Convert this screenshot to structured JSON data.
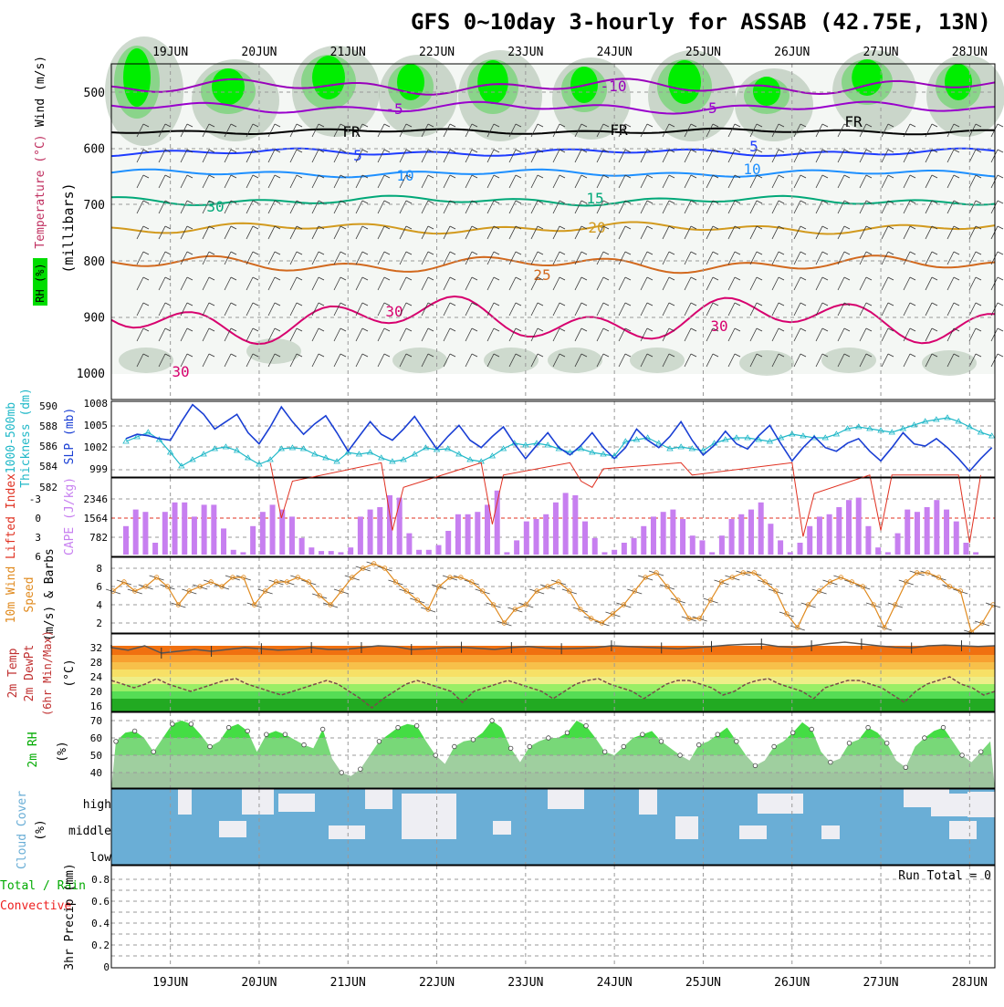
{
  "title": "GFS 0~10day 3-hourly for ASSAB (42.75E, 13N)",
  "date_ticks": [
    "19JUN",
    "20JUN",
    "21JUN",
    "22JUN",
    "23JUN",
    "24JUN",
    "25JUN",
    "26JUN",
    "27JUN",
    "28JUN"
  ],
  "colors": {
    "rh_green": "#00ee00",
    "rh_mid": "#7fd37f",
    "rh_grey": "#9fb59f",
    "temp_minus10": "#9900bb",
    "temp_minus5": "#9900cc",
    "temp_freezing": "#000000",
    "temp_5": "#1e3cff",
    "temp_10": "#1e90ff",
    "temp_15": "#00a878",
    "temp_20": "#d29a1e",
    "temp_25": "#d2691e",
    "temp_30": "#d7006e",
    "slp": "#1a3fd4",
    "thickness": "#20b8c8",
    "cape_bar": "#c77ff0",
    "lifted_index": "#e03020",
    "wind10m": "#e08a1e",
    "cloud": "#6aaed6",
    "precip_total": "#00aa00",
    "precip_convective": "#ee2020"
  },
  "panels": {
    "upper": {
      "label_rh": "RH (%)",
      "label_temp": "Temperature (°C)",
      "label_wind": "Wind (m/s)",
      "label_units": "(millibars)",
      "y_ticks": [
        "500",
        "600",
        "700",
        "800",
        "900",
        "1000"
      ],
      "contour_labels": [
        "-10",
        "-5",
        "FR",
        "5",
        "10",
        "15",
        "20",
        "25",
        "30",
        "30",
        "30",
        "-5",
        "FR",
        "FR",
        "5",
        "10",
        "30"
      ]
    },
    "thickness": {
      "label_left": "1000-500mb",
      "label_left2": "Thickness (dm)",
      "label_right": "SLP (mb)",
      "y_ticks_left": [
        "590",
        "588",
        "586",
        "584",
        "582"
      ],
      "y_ticks_right": [
        "1008",
        "1005",
        "1002",
        "999"
      ]
    },
    "cape": {
      "label_left": "Lifted Index",
      "label_right": "CAPE (J/kg)",
      "y_ticks_left": [
        "-3",
        "0",
        "3",
        "6"
      ],
      "y_ticks_right": [
        "2346",
        "1564",
        "782"
      ]
    },
    "wind10m": {
      "label_1": "10m Wind",
      "label_2": "Speed",
      "label_3": "(m/s) & Barbs",
      "y_ticks": [
        "8",
        "6",
        "4",
        "2"
      ]
    },
    "temp2m": {
      "label_1": "2m Temp",
      "label_2": "2m DewPt",
      "label_3": "(6hr Min/Max)",
      "label_units": "(°C)",
      "y_ticks": [
        "32",
        "28",
        "24",
        "20",
        "16"
      ]
    },
    "rh2m": {
      "label_1": "2m RH",
      "label_units": "(%)",
      "y_ticks": [
        "70",
        "60",
        "50",
        "40"
      ]
    },
    "cloud": {
      "label_1": "Cloud Cover",
      "label_units": "(%)",
      "levels": [
        "high",
        "middle",
        "low"
      ]
    },
    "precip": {
      "label_1": "Total / Rain",
      "label_2": "Convective",
      "label_3": "3hr Precip (mm)",
      "y_ticks": [
        "0.8",
        "0.6",
        "0.4",
        "0.2",
        "0"
      ],
      "run_total": "Run Total = 0"
    }
  },
  "chart_data": [
    {
      "type": "line",
      "name": "SLP (mb)",
      "x": [
        "18JUN 12Z",
        "18JUN 15Z",
        "18JUN 18Z",
        "18JUN 21Z",
        "19JUN 00Z",
        "19JUN 03Z",
        "19JUN 06Z",
        "19JUN 09Z",
        "19JUN 12Z",
        "19JUN 15Z",
        "19JUN 18Z",
        "19JUN 21Z",
        "20JUN 00Z",
        "20JUN 03Z",
        "20JUN 06Z",
        "20JUN 09Z",
        "20JUN 12Z",
        "20JUN 15Z",
        "20JUN 18Z",
        "20JUN 21Z",
        "21JUN 00Z",
        "21JUN 03Z",
        "21JUN 06Z",
        "21JUN 09Z",
        "21JUN 12Z",
        "21JUN 15Z",
        "21JUN 18Z",
        "21JUN 21Z",
        "22JUN 00Z",
        "22JUN 03Z",
        "22JUN 06Z",
        "22JUN 09Z",
        "22JUN 12Z",
        "22JUN 15Z",
        "22JUN 18Z",
        "22JUN 21Z",
        "23JUN 00Z",
        "23JUN 03Z",
        "23JUN 06Z",
        "23JUN 09Z",
        "23JUN 12Z",
        "23JUN 15Z",
        "23JUN 18Z",
        "23JUN 21Z",
        "24JUN 00Z",
        "24JUN 03Z",
        "24JUN 06Z",
        "24JUN 09Z",
        "24JUN 12Z",
        "24JUN 15Z",
        "24JUN 18Z",
        "24JUN 21Z",
        "25JUN 00Z",
        "25JUN 03Z",
        "25JUN 06Z",
        "25JUN 09Z",
        "25JUN 12Z",
        "25JUN 15Z",
        "25JUN 18Z",
        "25JUN 21Z",
        "26JUN 00Z",
        "26JUN 03Z",
        "26JUN 06Z",
        "26JUN 09Z",
        "26JUN 12Z",
        "26JUN 15Z",
        "26JUN 18Z",
        "26JUN 21Z",
        "27JUN 00Z",
        "27JUN 03Z",
        "27JUN 06Z",
        "27JUN 09Z",
        "27JUN 12Z",
        "27JUN 15Z",
        "27JUN 18Z",
        "27JUN 21Z",
        "28JUN 00Z",
        "28JUN 03Z",
        "28JUN 06Z"
      ],
      "values": [
        1003.2,
        1003.8,
        1003.6,
        1003.2,
        1003.0,
        1005.5,
        1007.8,
        1006.5,
        1004.5,
        1005.5,
        1006.5,
        1004.0,
        1002.5,
        1004.8,
        1007.5,
        1005.5,
        1003.8,
        1005.2,
        1006.3,
        1004.0,
        1001.5,
        1003.5,
        1005.5,
        1003.8,
        1003.0,
        1004.5,
        1006.2,
        1004.0,
        1001.8,
        1003.5,
        1005.0,
        1003.0,
        1002.0,
        1003.5,
        1004.8,
        1002.5,
        1000.5,
        1002.3,
        1004.0,
        1002.0,
        1001.0,
        1002.3,
        1004.0,
        1002.0,
        1000.5,
        1002.0,
        1004.5,
        1003.0,
        1002.0,
        1003.5,
        1005.5,
        1003.0,
        1001.0,
        1002.3,
        1004.2,
        1002.5,
        1001.8,
        1003.6,
        1005.0,
        1002.5,
        1000.2,
        1002.0,
        1003.5,
        1002.0,
        1001.5,
        1002.6,
        1003.2,
        1001.5,
        1000.2,
        1002.0,
        1004.0,
        1002.5,
        1002.2,
        1003.2,
        1002.0,
        1000.5,
        998.8,
        1000.5,
        1002.0
      ]
    },
    {
      "type": "line",
      "name": "1000-500mb Thickness (dm)",
      "values": [
        586.0,
        586.5,
        587.0,
        586.2,
        584.8,
        583.3,
        584.0,
        584.6,
        585.2,
        585.4,
        585.0,
        584.2,
        583.5,
        584.0,
        585.2,
        585.3,
        585.2,
        584.6,
        584.2,
        583.8,
        584.8,
        584.6,
        584.8,
        584.2,
        583.8,
        584.0,
        584.6,
        585.3,
        585.1,
        585.2,
        584.6,
        584.0,
        583.8,
        584.4,
        585.2,
        585.8,
        585.6,
        585.8,
        585.6,
        585.2,
        584.8,
        585.2,
        584.8,
        584.6,
        584.4,
        586.0,
        586.2,
        586.4,
        585.8,
        585.2,
        585.4,
        585.2,
        585.0,
        585.8,
        586.2,
        586.4,
        586.4,
        586.2,
        586.0,
        586.4,
        586.8,
        586.6,
        586.4,
        586.4,
        586.8,
        587.4,
        587.6,
        587.4,
        587.2,
        587.0,
        587.4,
        587.8,
        588.2,
        588.4,
        588.6,
        588.2,
        587.6,
        587.0,
        586.6
      ]
    },
    {
      "type": "bar",
      "name": "CAPE (J/kg)",
      "values": [
        1200,
        1900,
        1800,
        500,
        1800,
        2200,
        2200,
        1600,
        2100,
        2100,
        1100,
        200,
        100,
        1200,
        1800,
        2100,
        1900,
        1600,
        700,
        300,
        150,
        150,
        100,
        300,
        1600,
        1900,
        2000,
        2500,
        2400,
        900,
        200,
        200,
        400,
        1000,
        1700,
        1700,
        1800,
        2100,
        2700,
        100,
        600,
        1400,
        1500,
        1700,
        2200,
        2600,
        2500,
        1400,
        700,
        100,
        200,
        500,
        700,
        1200,
        1600,
        1800,
        1900,
        1500,
        800,
        600,
        100,
        800,
        1500,
        1700,
        1900,
        2200,
        1300,
        600,
        100,
        500,
        1200,
        1600,
        1700,
        2000,
        2300,
        2400,
        1200,
        300,
        100,
        900,
        1900,
        1800,
        2000,
        2300,
        1900,
        1400,
        500,
        100
      ]
    },
    {
      "type": "line",
      "name": "Lifted Index",
      "values": [
        null,
        null,
        null,
        null,
        null,
        null,
        null,
        null,
        null,
        null,
        null,
        null,
        null,
        -4.5,
        0,
        -3,
        null,
        null,
        null,
        null,
        null,
        null,
        null,
        -4.5,
        1.0,
        -2.5,
        null,
        null,
        null,
        null,
        null,
        null,
        -4.5,
        0.5,
        -3.5,
        null,
        null,
        null,
        null,
        null,
        -4.5,
        -3,
        -2.5,
        -4,
        null,
        null,
        null,
        null,
        null,
        null,
        -4.5,
        -3.5,
        null,
        null,
        null,
        null,
        null,
        null,
        null,
        null,
        -4.5,
        1.5,
        -2,
        null,
        null,
        null,
        null,
        -3.5,
        1,
        -3.5,
        null,
        null,
        null,
        null,
        null,
        -3.5,
        2,
        -3.5
      ]
    },
    {
      "type": "line",
      "name": "10m Wind Speed (m/s)",
      "values": [
        5.5,
        6.5,
        5.5,
        6.0,
        7.0,
        6.0,
        4.0,
        5.5,
        6.0,
        6.5,
        6.0,
        7.0,
        7.0,
        4.0,
        5.5,
        6.5,
        6.5,
        7.0,
        6.5,
        5.0,
        4.0,
        5.5,
        7.0,
        8.0,
        8.5,
        8.0,
        6.5,
        5.5,
        4.5,
        3.5,
        6.0,
        7.0,
        7.0,
        6.5,
        5.5,
        4.0,
        2.0,
        3.5,
        4.0,
        5.5,
        6.0,
        6.5,
        5.5,
        3.5,
        2.5,
        2.0,
        3.0,
        4.0,
        5.5,
        7.0,
        7.5,
        6.0,
        4.5,
        2.5,
        2.5,
        4.5,
        6.5,
        7.0,
        7.5,
        7.5,
        6.5,
        5.5,
        3.0,
        1.5,
        4.0,
        5.5,
        6.5,
        7.0,
        6.5,
        6.0,
        4.0,
        1.5,
        4.0,
        6.5,
        7.5,
        7.5,
        7.0,
        6.0,
        5.5,
        1.0,
        2.0,
        4.0
      ]
    },
    {
      "type": "area",
      "name": "2m Temp / DewPt (°C)",
      "temp_max": [
        31.5,
        30.8,
        32.0,
        30.0,
        30.5,
        31.0,
        30.5,
        31.0,
        31.5,
        31.2,
        30.8,
        31.0,
        31.5,
        31.0,
        31.0,
        31.5,
        32.0,
        31.8,
        31.0,
        31.2,
        31.5,
        31.6,
        31.3,
        31.0,
        31.5,
        31.8,
        31.4,
        31.2,
        31.3,
        31.5,
        32.0,
        31.8,
        31.6,
        31.4,
        31.2,
        31.5,
        31.8,
        32.2,
        32.4,
        32.5,
        31.8,
        31.6,
        32.0,
        32.6,
        33.0,
        32.5,
        32.0,
        31.6,
        31.4,
        32.0,
        32.2,
        32.0,
        31.8,
        32.0
      ],
      "dewpt": [
        23,
        22,
        21,
        22,
        23.5,
        22,
        21,
        20,
        21,
        22,
        23,
        23.5,
        22,
        21,
        20,
        19,
        20,
        21,
        22,
        23,
        22,
        20,
        18,
        15.5,
        18,
        20,
        22,
        23,
        22,
        21,
        20,
        17,
        20,
        21,
        22,
        23,
        22,
        21,
        20,
        18,
        20,
        22,
        23,
        23.5,
        22,
        21,
        20,
        18,
        20,
        22,
        23,
        23,
        22,
        21,
        19,
        20,
        22,
        23,
        23.5,
        22,
        21,
        20,
        18,
        21,
        22,
        23,
        23,
        22,
        21,
        19,
        17,
        20,
        22,
        23,
        24,
        22,
        21,
        19,
        20
      ]
    },
    {
      "type": "area",
      "name": "2m RH (%)",
      "values": [
        58,
        63,
        64,
        60,
        52,
        60,
        68,
        70,
        68,
        62,
        55,
        58,
        66,
        68,
        64,
        52,
        62,
        64,
        62,
        59,
        56,
        54,
        65,
        48,
        40,
        38,
        42,
        50,
        58,
        62,
        66,
        68,
        67,
        58,
        50,
        45,
        55,
        58,
        59,
        63,
        70,
        66,
        54,
        46,
        55,
        58,
        60,
        60,
        63,
        70,
        67,
        60,
        52,
        50,
        55,
        60,
        62,
        64,
        58,
        54,
        50,
        47,
        56,
        58,
        62,
        66,
        58,
        50,
        44,
        47,
        55,
        58,
        63,
        69,
        65,
        52,
        46,
        48,
        57,
        59,
        66,
        63,
        57,
        47,
        43,
        55,
        60,
        64,
        66,
        58,
        50,
        46,
        52,
        58
      ]
    },
    {
      "type": "heatmap",
      "name": "Cloud Cover (%)",
      "levels": [
        "high",
        "middle",
        "low"
      ]
    },
    {
      "type": "bar",
      "name": "3hr Precip (mm)",
      "ylim": [
        0,
        0.9
      ],
      "values": []
    }
  ]
}
